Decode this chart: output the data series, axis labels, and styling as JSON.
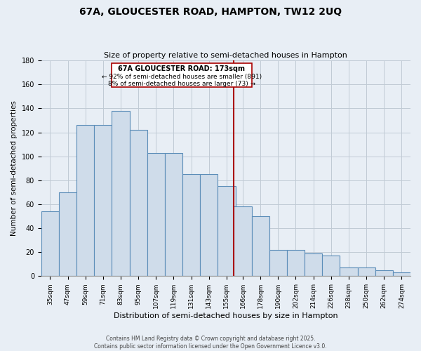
{
  "title_line1": "67A, GLOUCESTER ROAD, HAMPTON, TW12 2UQ",
  "title_line2": "Size of property relative to semi-detached houses in Hampton",
  "xlabel": "Distribution of semi-detached houses by size in Hampton",
  "ylabel": "Number of semi-detached properties",
  "bar_color": "#cfdcea",
  "bar_edge_color": "#5b8db8",
  "annotation_box_color": "#aa0000",
  "annotation_bg": "#ffffff",
  "annotation_text_line1": "67A GLOUCESTER ROAD: 173sqm",
  "annotation_text_line2": "← 92% of semi-detached houses are smaller (891)",
  "annotation_text_line3": "8% of semi-detached houses are larger (73) →",
  "vline_color": "#aa0000",
  "categories": [
    "35sqm",
    "47sqm",
    "59sqm",
    "71sqm",
    "83sqm",
    "95sqm",
    "107sqm",
    "119sqm",
    "131sqm",
    "143sqm",
    "155sqm",
    "166sqm",
    "178sqm",
    "190sqm",
    "202sqm",
    "214sqm",
    "226sqm",
    "238sqm",
    "250sqm",
    "262sqm",
    "274sqm"
  ],
  "bin_starts": [
    35,
    47,
    59,
    71,
    83,
    95,
    107,
    119,
    131,
    143,
    155,
    166,
    178,
    190,
    202,
    214,
    226,
    238,
    250,
    262,
    274
  ],
  "bin_width": 12,
  "counts": [
    54,
    70,
    126,
    126,
    138,
    122,
    103,
    103,
    85,
    85,
    75,
    58,
    50,
    22,
    22,
    19,
    17,
    7,
    7,
    5,
    3
  ],
  "vline_x": 166,
  "ylim": [
    0,
    180
  ],
  "yticks": [
    0,
    20,
    40,
    60,
    80,
    100,
    120,
    140,
    160,
    180
  ],
  "footer_line1": "Contains HM Land Registry data © Crown copyright and database right 2025.",
  "footer_line2": "Contains public sector information licensed under the Open Government Licence v3.0.",
  "background_color": "#e8eef5",
  "grid_color": "#c0cad4",
  "spine_color": "#999999",
  "title_fontsize": 10,
  "subtitle_fontsize": 8,
  "ylabel_fontsize": 7.5,
  "xlabel_fontsize": 8,
  "tick_fontsize": 7,
  "xtick_fontsize": 6.5,
  "footer_fontsize": 5.5,
  "annot_fontsize": 7
}
